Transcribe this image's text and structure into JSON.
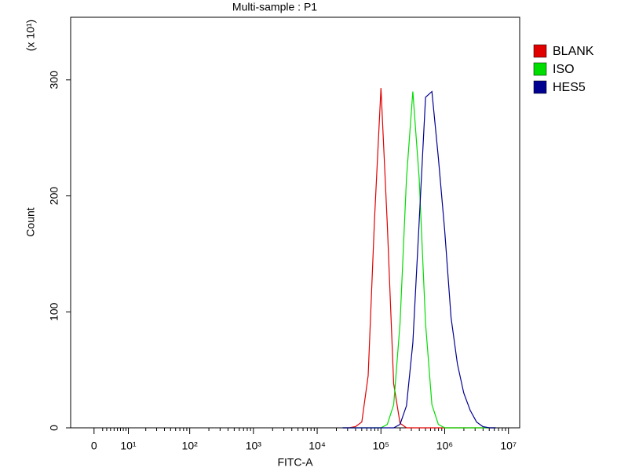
{
  "chart_data": {
    "type": "line",
    "title": "Multi-sample : P1",
    "x_label": "FITC-A",
    "y_label": "Count",
    "y_multiplier": "(x 10¹)",
    "xscale": "biexponential",
    "xlim": [
      -6,
      15000000
    ],
    "ylim": [
      0,
      354
    ],
    "xticks": [
      {
        "value": 0,
        "label": "0"
      },
      {
        "value": 10,
        "label": "10¹"
      },
      {
        "value": 100,
        "label": "10²"
      },
      {
        "value": 1000,
        "label": "10³"
      },
      {
        "value": 10000,
        "label": "10⁴"
      },
      {
        "value": 100000,
        "label": "10⁵"
      },
      {
        "value": 1000000,
        "label": "10⁶"
      },
      {
        "value": 10000000,
        "label": "10⁷"
      }
    ],
    "yticks": [
      0,
      100,
      200,
      300
    ],
    "grid": false,
    "legend": "right",
    "x": [
      25119,
      31623,
      39811,
      50119,
      63096,
      79433,
      100000,
      125893,
      158489,
      199526,
      251189,
      316228,
      398107,
      501187,
      630957,
      794328,
      1000000,
      1258925,
      1584893,
      1995262,
      2511886,
      3162278,
      3981072,
      5011872,
      6309573
    ],
    "series": [
      {
        "name": "BLANK",
        "color": "#e00000",
        "values": [
          0,
          0,
          1,
          5,
          45,
          180,
          293,
          175,
          38,
          4,
          0,
          0,
          0,
          0,
          0,
          0,
          0,
          0,
          0,
          0,
          0,
          0,
          0,
          0,
          0
        ]
      },
      {
        "name": "ISO",
        "color": "#00dd00",
        "values": [
          0,
          0,
          0,
          0,
          0,
          0,
          0,
          3,
          20,
          90,
          215,
          290,
          215,
          90,
          20,
          3,
          0,
          0,
          0,
          0,
          0,
          0,
          0,
          0,
          0
        ]
      },
      {
        "name": "HES5",
        "color": "#000090",
        "values": [
          0,
          0,
          0,
          0,
          0,
          0,
          0,
          0,
          0,
          3,
          19,
          73,
          178,
          285,
          290,
          233,
          170,
          95,
          55,
          30,
          15,
          5,
          1,
          0,
          0
        ]
      }
    ]
  }
}
